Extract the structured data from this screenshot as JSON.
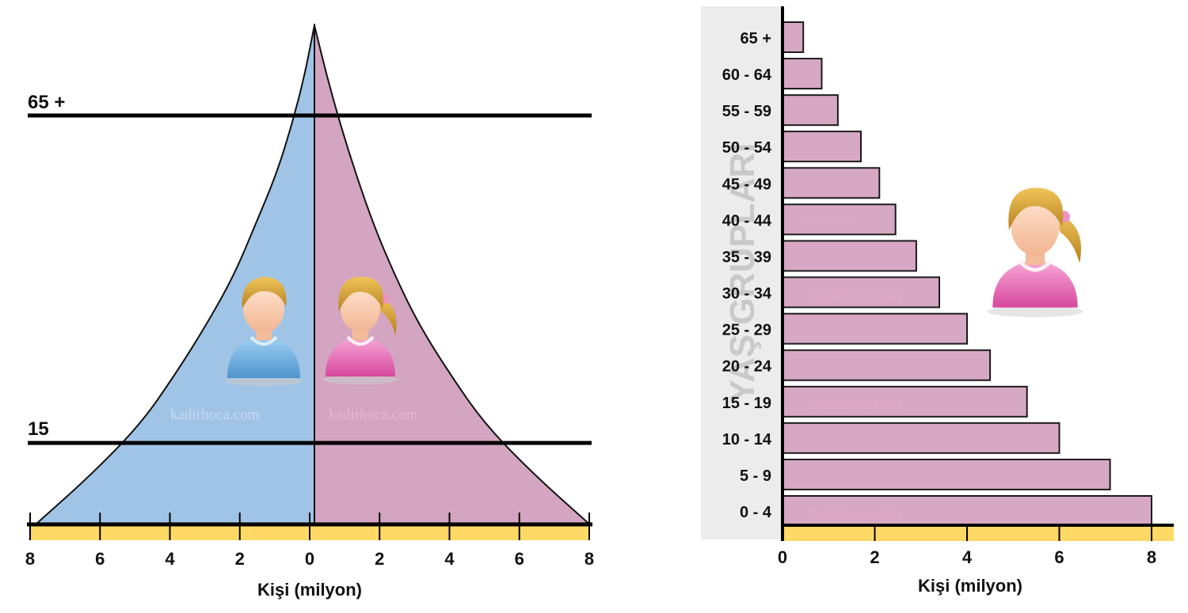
{
  "chart_data": [
    {
      "type": "area",
      "subtype": "population-pyramid",
      "xlabel": "Kişi (milyon)",
      "x_ticks": [
        "8",
        "6",
        "4",
        "2",
        "0",
        "2",
        "4",
        "6",
        "8"
      ],
      "xlim": [
        -8,
        8
      ],
      "threshold_labels": [
        "65 +",
        "15"
      ],
      "series": [
        {
          "name": "",
          "color": "#a0c4e6",
          "side": "left",
          "profile": [
            {
              "level": 0.0,
              "value": 8.0
            },
            {
              "level": 0.1,
              "value": 6.4
            },
            {
              "level": 0.2,
              "value": 5.0
            },
            {
              "level": 0.3,
              "value": 4.0
            },
            {
              "level": 0.4,
              "value": 3.1
            },
            {
              "level": 0.5,
              "value": 2.3
            },
            {
              "level": 0.6,
              "value": 1.7
            },
            {
              "level": 0.7,
              "value": 1.1
            },
            {
              "level": 0.8,
              "value": 0.65
            },
            {
              "level": 0.9,
              "value": 0.28
            },
            {
              "level": 1.0,
              "value": 0.0
            }
          ]
        },
        {
          "name": "",
          "color": "#d3a5c1",
          "side": "right",
          "profile": [
            {
              "level": 0.0,
              "value": 7.9
            },
            {
              "level": 0.1,
              "value": 6.3
            },
            {
              "level": 0.2,
              "value": 4.9
            },
            {
              "level": 0.3,
              "value": 3.9
            },
            {
              "level": 0.4,
              "value": 3.0
            },
            {
              "level": 0.5,
              "value": 2.3
            },
            {
              "level": 0.6,
              "value": 1.7
            },
            {
              "level": 0.7,
              "value": 1.2
            },
            {
              "level": 0.8,
              "value": 0.75
            },
            {
              "level": 0.9,
              "value": 0.35
            },
            {
              "level": 1.0,
              "value": 0.0
            }
          ]
        }
      ]
    },
    {
      "type": "bar",
      "orientation": "horizontal",
      "ylabel": "YAŞ GRUPLARI",
      "xlabel": "Kişi (milyon)",
      "xlim": [
        0,
        8.5
      ],
      "x_ticks": [
        "0",
        "2",
        "4",
        "6",
        "8"
      ],
      "categories": [
        "0 - 4",
        "5 - 9",
        "10 - 14",
        "15 - 19",
        "20 - 24",
        "25 - 29",
        "30 - 34",
        "35 - 39",
        "40 - 44",
        "45 - 49",
        "50 - 54",
        "55 - 59",
        "60 - 64",
        "65 +"
      ],
      "values": [
        8.0,
        7.1,
        6.0,
        5.3,
        4.5,
        4.0,
        3.4,
        2.9,
        2.45,
        2.1,
        1.7,
        1.2,
        0.85,
        0.45
      ],
      "bar_color": "#d7a8c4",
      "axis_band_color": "#ffd966"
    }
  ],
  "watermarks": [
    "kadirhoca.com",
    "kadirhoca.com",
    "kadirhoca.com",
    "kadirhoca.com",
    "kadirhoca.com",
    "kadirhoca.com"
  ],
  "icons": [
    "male-avatar-icon",
    "female-avatar-icon",
    "female-avatar-icon"
  ]
}
